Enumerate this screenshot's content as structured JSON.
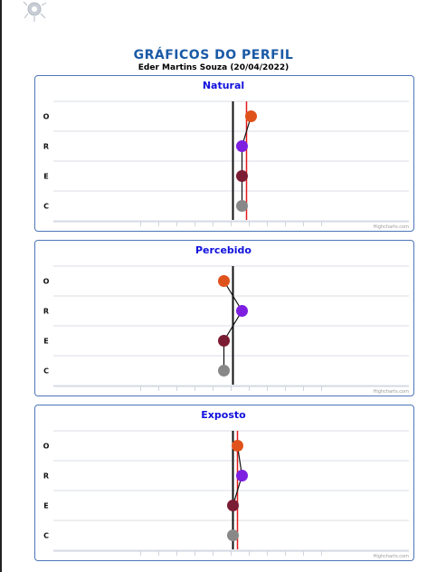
{
  "page": {
    "title": "GRÁFICOS DO PERFIL",
    "subtitle": "Eder Martins Souza (20/04/2022)",
    "credit": "Highcharts.com"
  },
  "chart_data": [
    {
      "type": "line",
      "title": "Natural",
      "categories": [
        "O",
        "R",
        "E",
        "C"
      ],
      "xlim": [
        -5,
        5
      ],
      "center_line": 0,
      "reference_line": 0.75,
      "series": [
        {
          "points": [
            {
              "category": "O",
              "x": 1.0,
              "color": "#e0521b"
            },
            {
              "category": "R",
              "x": 0.5,
              "color": "#7d1ee0"
            },
            {
              "category": "E",
              "x": 0.5,
              "color": "#7a1c33"
            },
            {
              "category": "C",
              "x": 0.5,
              "color": "#888888"
            }
          ]
        }
      ]
    },
    {
      "type": "line",
      "title": "Percebido",
      "categories": [
        "O",
        "R",
        "E",
        "C"
      ],
      "xlim": [
        -5,
        5
      ],
      "center_line": 0,
      "reference_line": null,
      "series": [
        {
          "points": [
            {
              "category": "O",
              "x": -0.5,
              "color": "#e0521b"
            },
            {
              "category": "R",
              "x": 0.5,
              "color": "#7d1ee0"
            },
            {
              "category": "E",
              "x": -0.5,
              "color": "#7a1c33"
            },
            {
              "category": "C",
              "x": -0.5,
              "color": "#888888"
            }
          ]
        }
      ]
    },
    {
      "type": "line",
      "title": "Exposto",
      "categories": [
        "O",
        "R",
        "E",
        "C"
      ],
      "xlim": [
        -5,
        5
      ],
      "center_line": 0,
      "reference_line": 0.25,
      "series": [
        {
          "points": [
            {
              "category": "O",
              "x": 0.25,
              "color": "#e0521b"
            },
            {
              "category": "R",
              "x": 0.5,
              "color": "#7d1ee0"
            },
            {
              "category": "E",
              "x": 0.0,
              "color": "#7a1c33"
            },
            {
              "category": "C",
              "x": 0.0,
              "color": "#888888"
            }
          ]
        }
      ]
    }
  ]
}
